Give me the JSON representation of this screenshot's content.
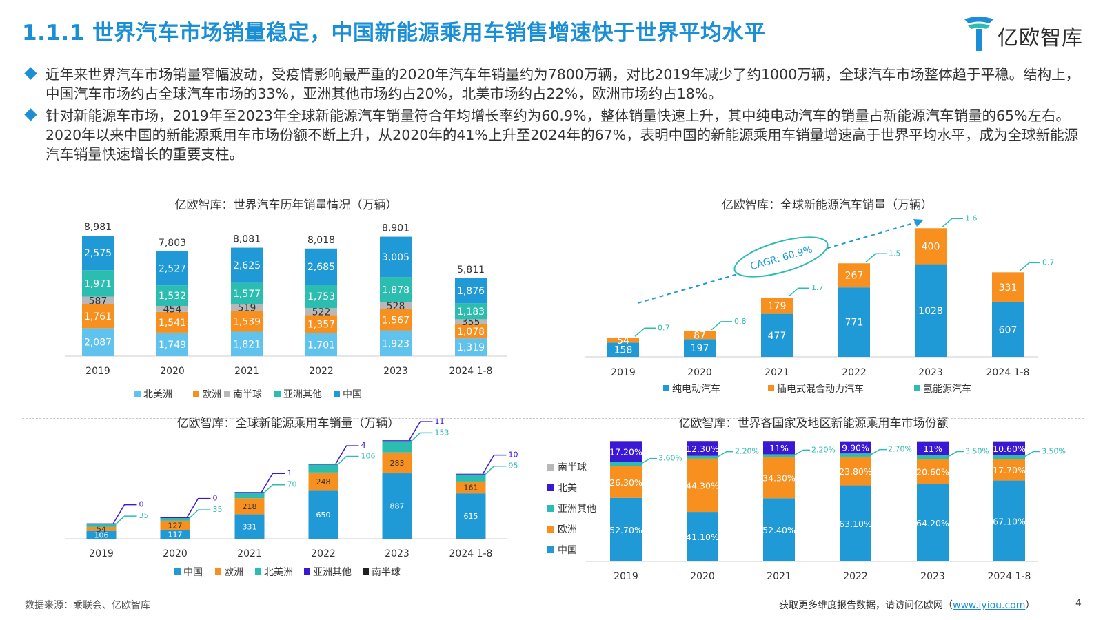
{
  "header": {
    "title": "1.1.1 世界汽车市场销量稳定，中国新能源乘用车销售增速快于世界平均水平",
    "logo_text": "亿欧智库"
  },
  "bullets": [
    "近年来世界汽车市场销量窄幅波动，受疫情影响最严重的2020年汽车年销量约为7800万辆，对比2019年减少了约1000万辆，全球汽车市场整体趋于平稳。结构上，中国汽车市场约占全球汽车市场的33%，亚洲其他市场约占20%，北美市场约占22%，欧洲市场约占18%。",
    "针对新能源车市场，2019年至2023年全球新能源汽车销量符合年均增长率约为60.9%，整体销量快速上升，其中纯电动汽车的销量占新能源汽车销量的65%左右。2020年以来中国的新能源乘用车市场份额不断上升，从2020年的41%上升至2024年的67%，表明中国的新能源乘用车销量增速高于世界平均水平，成为全球新能源汽车销量快速增长的重要支柱。"
  ],
  "footer": {
    "source": "数据来源：乘联会、亿欧智库",
    "more_prefix": "获取更多维度报告数据，请访问亿欧网（",
    "more_link": "www.iyiou.com",
    "more_suffix": "）",
    "page": "4"
  },
  "colors": {
    "accent": "#1a8fd6",
    "china": "#1f9ad6",
    "europe": "#f7901e",
    "asia_other": "#2bbdb0",
    "southern": "#b8b8b8",
    "north_america_light": "#5fc3ee",
    "north_america_dark": "#3b17d6",
    "dark": "#222222"
  },
  "chart_data": [
    {
      "type": "bar",
      "stacked": true,
      "title": "亿欧智库：世界汽车历年销量情况（万辆）",
      "categories": [
        "2019",
        "2020",
        "2021",
        "2022",
        "2023",
        "2024 1-8"
      ],
      "series": [
        {
          "name": "北美洲",
          "values": [
            2087,
            1749,
            1821,
            1701,
            1923,
            1319
          ],
          "labels": [
            "2,087",
            "1,749",
            "1,821",
            "1,701",
            "1,923",
            "1,319"
          ]
        },
        {
          "name": "欧洲",
          "values": [
            1761,
            1541,
            1539,
            1357,
            1567,
            1078
          ],
          "labels": [
            "1,761",
            "1,541",
            "1,539",
            "1,357",
            "1,567",
            "1,078"
          ]
        },
        {
          "name": "南半球",
          "values": [
            587,
            454,
            519,
            522,
            528,
            355
          ],
          "labels": [
            "587",
            "454",
            "519",
            "522",
            "528",
            "355"
          ]
        },
        {
          "name": "亚洲其他",
          "values": [
            1971,
            1532,
            1577,
            1753,
            1878,
            1183
          ],
          "labels": [
            "1,971",
            "1,532",
            "1,577",
            "1,753",
            "1,878",
            "1,183"
          ]
        },
        {
          "name": "中国",
          "values": [
            2575,
            2527,
            2625,
            2685,
            3005,
            1876
          ],
          "labels": [
            "2,575",
            "2,527",
            "2,625",
            "2,685",
            "3,005",
            "1,876"
          ]
        }
      ],
      "totals": [
        "8,981",
        "7,803",
        "8,081",
        "8,018",
        "8,901",
        "5,811"
      ],
      "total_values": [
        8981,
        7803,
        8081,
        8018,
        8901,
        5811
      ],
      "legend_position": "bottom"
    },
    {
      "type": "bar",
      "stacked": true,
      "title": "亿欧智库：全球新能源汽车销量（万辆）",
      "categories": [
        "2019",
        "2020",
        "2021",
        "2022",
        "2023",
        "2024 1-8"
      ],
      "series": [
        {
          "name": "纯电动汽车",
          "values": [
            158,
            197,
            477,
            771,
            1028,
            607
          ]
        },
        {
          "name": "插电式混合动力汽车",
          "values": [
            54,
            87,
            179,
            267,
            400,
            331
          ]
        },
        {
          "name": "氢能源汽车",
          "values": [
            0.7,
            0.8,
            1.7,
            1.5,
            1.6,
            0.7
          ]
        }
      ],
      "hydrogen_labels": [
        "0.7",
        "0.8",
        "1.7",
        "1.5",
        "1.6",
        "0.7"
      ],
      "annotation": "CAGR: 60.9%",
      "legend_position": "bottom"
    },
    {
      "type": "bar",
      "stacked": true,
      "title": "亿欧智库：全球新能源乘用车销量（万辆）",
      "categories": [
        "2019",
        "2020",
        "2021",
        "2022",
        "2023",
        "2024 1-8"
      ],
      "series": [
        {
          "name": "中国",
          "values": [
            106,
            117,
            331,
            650,
            887,
            615
          ]
        },
        {
          "name": "欧洲",
          "values": [
            54,
            127,
            218,
            248,
            283,
            161
          ]
        },
        {
          "name": "北美洲",
          "values": [
            35,
            35,
            70,
            106,
            153,
            95
          ]
        },
        {
          "name": "亚洲其他",
          "values": [
            0,
            0,
            1,
            4,
            11,
            10
          ]
        },
        {
          "name": "南半球",
          "values": [
            0,
            0,
            0,
            0,
            0,
            0
          ]
        }
      ],
      "legend_position": "bottom"
    },
    {
      "type": "bar",
      "stacked": true,
      "percent": true,
      "title": "亿欧智库：世界各国家及地区新能源乘用车市场份额",
      "categories": [
        "2019",
        "2020",
        "2021",
        "2022",
        "2023",
        "2024 1-8"
      ],
      "series": [
        {
          "name": "中国",
          "values": [
            52.7,
            41.1,
            52.4,
            63.1,
            64.2,
            67.1
          ],
          "labels": [
            "52.70%",
            "41.10%",
            "52.40%",
            "63.10%",
            "64.20%",
            "67.10%"
          ]
        },
        {
          "name": "欧洲",
          "values": [
            26.3,
            44.3,
            34.3,
            23.8,
            20.6,
            17.7
          ],
          "labels": [
            "26.30%",
            "44.30%",
            "34.30%",
            "23.80%",
            "20.60%",
            "17.70%"
          ]
        },
        {
          "name": "亚洲其他",
          "values": [
            3.6,
            2.2,
            2.2,
            2.7,
            3.5,
            3.5
          ],
          "labels": [
            "3.60%",
            "2.20%",
            "2.20%",
            "2.70%",
            "3.50%",
            "3.50%"
          ]
        },
        {
          "name": "北美",
          "values": [
            17.2,
            12.3,
            11,
            9.9,
            11,
            10.6
          ],
          "labels": [
            "17.20%",
            "12.30%",
            "11%",
            "9.90%",
            "11%",
            "10.60%"
          ]
        },
        {
          "name": "南半球",
          "values": [
            0.2,
            0.1,
            0.1,
            0.5,
            0.7,
            1.1
          ]
        }
      ],
      "legend_position": "left"
    }
  ]
}
